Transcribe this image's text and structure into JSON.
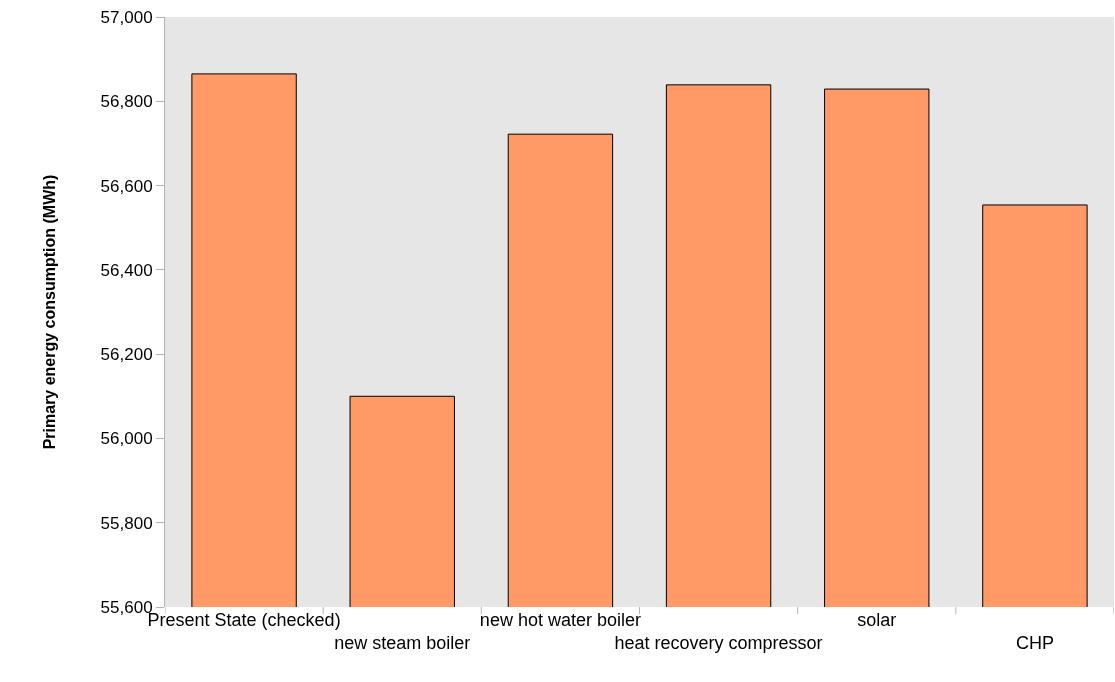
{
  "chart_data": {
    "type": "bar",
    "ylabel": "Primary energy consumption (MWh)",
    "categories": [
      "Present State (checked)",
      "new steam boiler",
      "new hot water boiler",
      "heat recovery compressor",
      "solar",
      "CHP"
    ],
    "values": [
      56865,
      56100,
      56722,
      56839,
      56829,
      56554
    ],
    "color": "#ff9966",
    "ylim": [
      55600,
      57000
    ],
    "yticks": [
      {
        "value": 55600,
        "label": "55,600"
      },
      {
        "value": 55800,
        "label": "55,800"
      },
      {
        "value": 56000,
        "label": "56,000"
      },
      {
        "value": 56200,
        "label": "56,200"
      },
      {
        "value": 56400,
        "label": "56,400"
      },
      {
        "value": 56600,
        "label": "56,600"
      },
      {
        "value": 56800,
        "label": "56,800"
      },
      {
        "value": 57000,
        "label": "57,000"
      }
    ],
    "grid": false,
    "legend": false
  }
}
